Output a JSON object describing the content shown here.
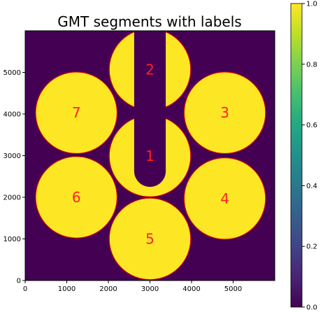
{
  "chart_data": {
    "type": "heatmap",
    "title": "GMT segments with labels",
    "xlabel": "",
    "ylabel": "",
    "xlim": [
      0,
      6000
    ],
    "ylim": [
      0,
      6000
    ],
    "xticks": [
      0,
      1000,
      2000,
      3000,
      4000,
      5000
    ],
    "yticks": [
      0,
      1000,
      2000,
      3000,
      4000,
      5000
    ],
    "colormap": "viridis",
    "clim": [
      0.0,
      1.0
    ],
    "colorbar_ticks": [
      0.0,
      0.2,
      0.4,
      0.6,
      0.8,
      1.0
    ],
    "colorbar_tick_labels": [
      "0.0",
      "0.2",
      "0.4",
      "0.6",
      "0.8",
      "1.0"
    ],
    "background_value": 0.0,
    "segment_value": 1.0,
    "segment_radius": 980,
    "segment_outline_color": "#cc0000",
    "label_color": "#ff2020",
    "segments": [
      {
        "label": "1",
        "cx": 3000,
        "cy": 2990,
        "shape": "circle-with-center-slot"
      },
      {
        "label": "2",
        "cx": 3000,
        "cy": 5070,
        "shape": "circle-with-center-slot"
      },
      {
        "label": "3",
        "cx": 4800,
        "cy": 4030,
        "shape": "circle"
      },
      {
        "label": "4",
        "cx": 4800,
        "cy": 1970,
        "shape": "circle"
      },
      {
        "label": "5",
        "cx": 3000,
        "cy": 1000,
        "shape": "circle"
      },
      {
        "label": "6",
        "cx": 1230,
        "cy": 2000,
        "shape": "circle"
      },
      {
        "label": "7",
        "cx": 1230,
        "cy": 4030,
        "shape": "circle"
      }
    ],
    "slot_half_width": 380,
    "slot_bottom_y": 2630
  }
}
